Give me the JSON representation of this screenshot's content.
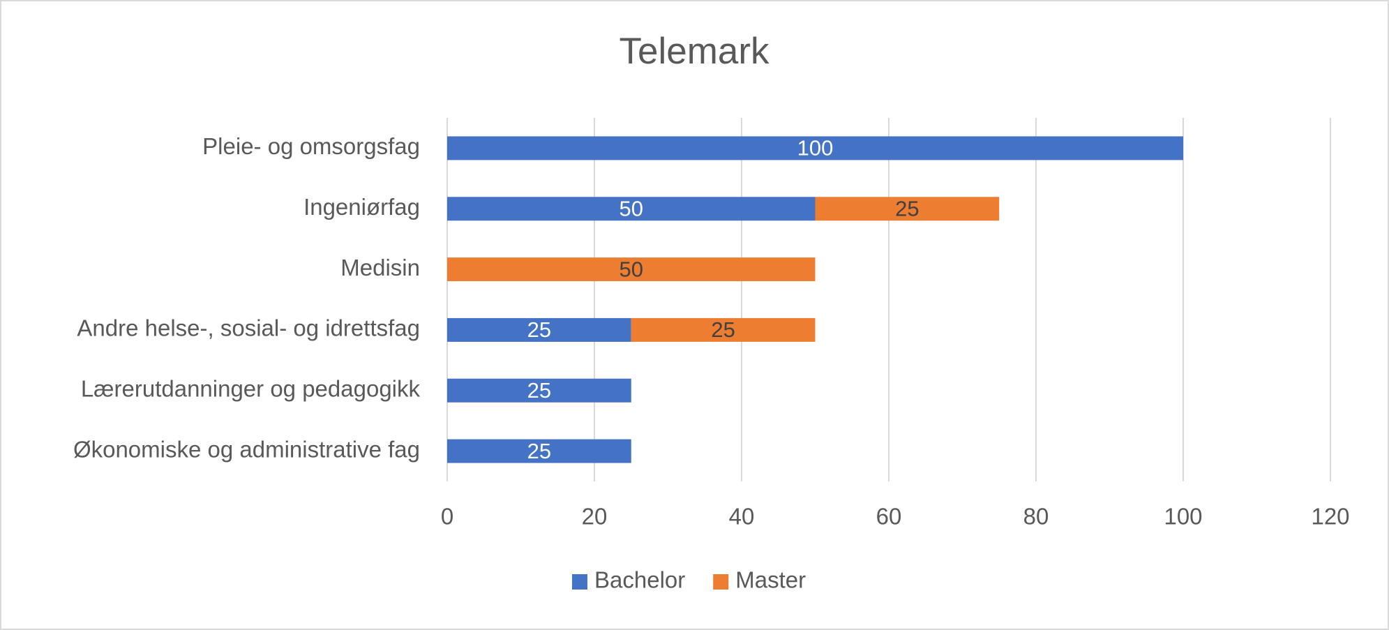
{
  "chart_data": {
    "type": "stacked-bar-horizontal",
    "title": "Telemark",
    "categories": [
      "Pleie- og omsorgsfag",
      "Ingeniørfag",
      "Medisin",
      "Andre helse-, sosial- og idrettsfag",
      "Lærerutdanninger og pedagogikk",
      "Økonomiske og administrative fag"
    ],
    "series": [
      {
        "name": "Bachelor",
        "color": "#4472c4",
        "label_color": "#ffffff",
        "values": [
          100,
          50,
          null,
          25,
          25,
          25
        ]
      },
      {
        "name": "Master",
        "color": "#ed7d31",
        "label_color": "#404040",
        "values": [
          null,
          25,
          50,
          25,
          null,
          null
        ]
      }
    ],
    "xlim": [
      0,
      120
    ],
    "xticks": [
      0,
      20,
      40,
      60,
      80,
      100,
      120
    ],
    "grid": true,
    "legend": "bottom"
  }
}
